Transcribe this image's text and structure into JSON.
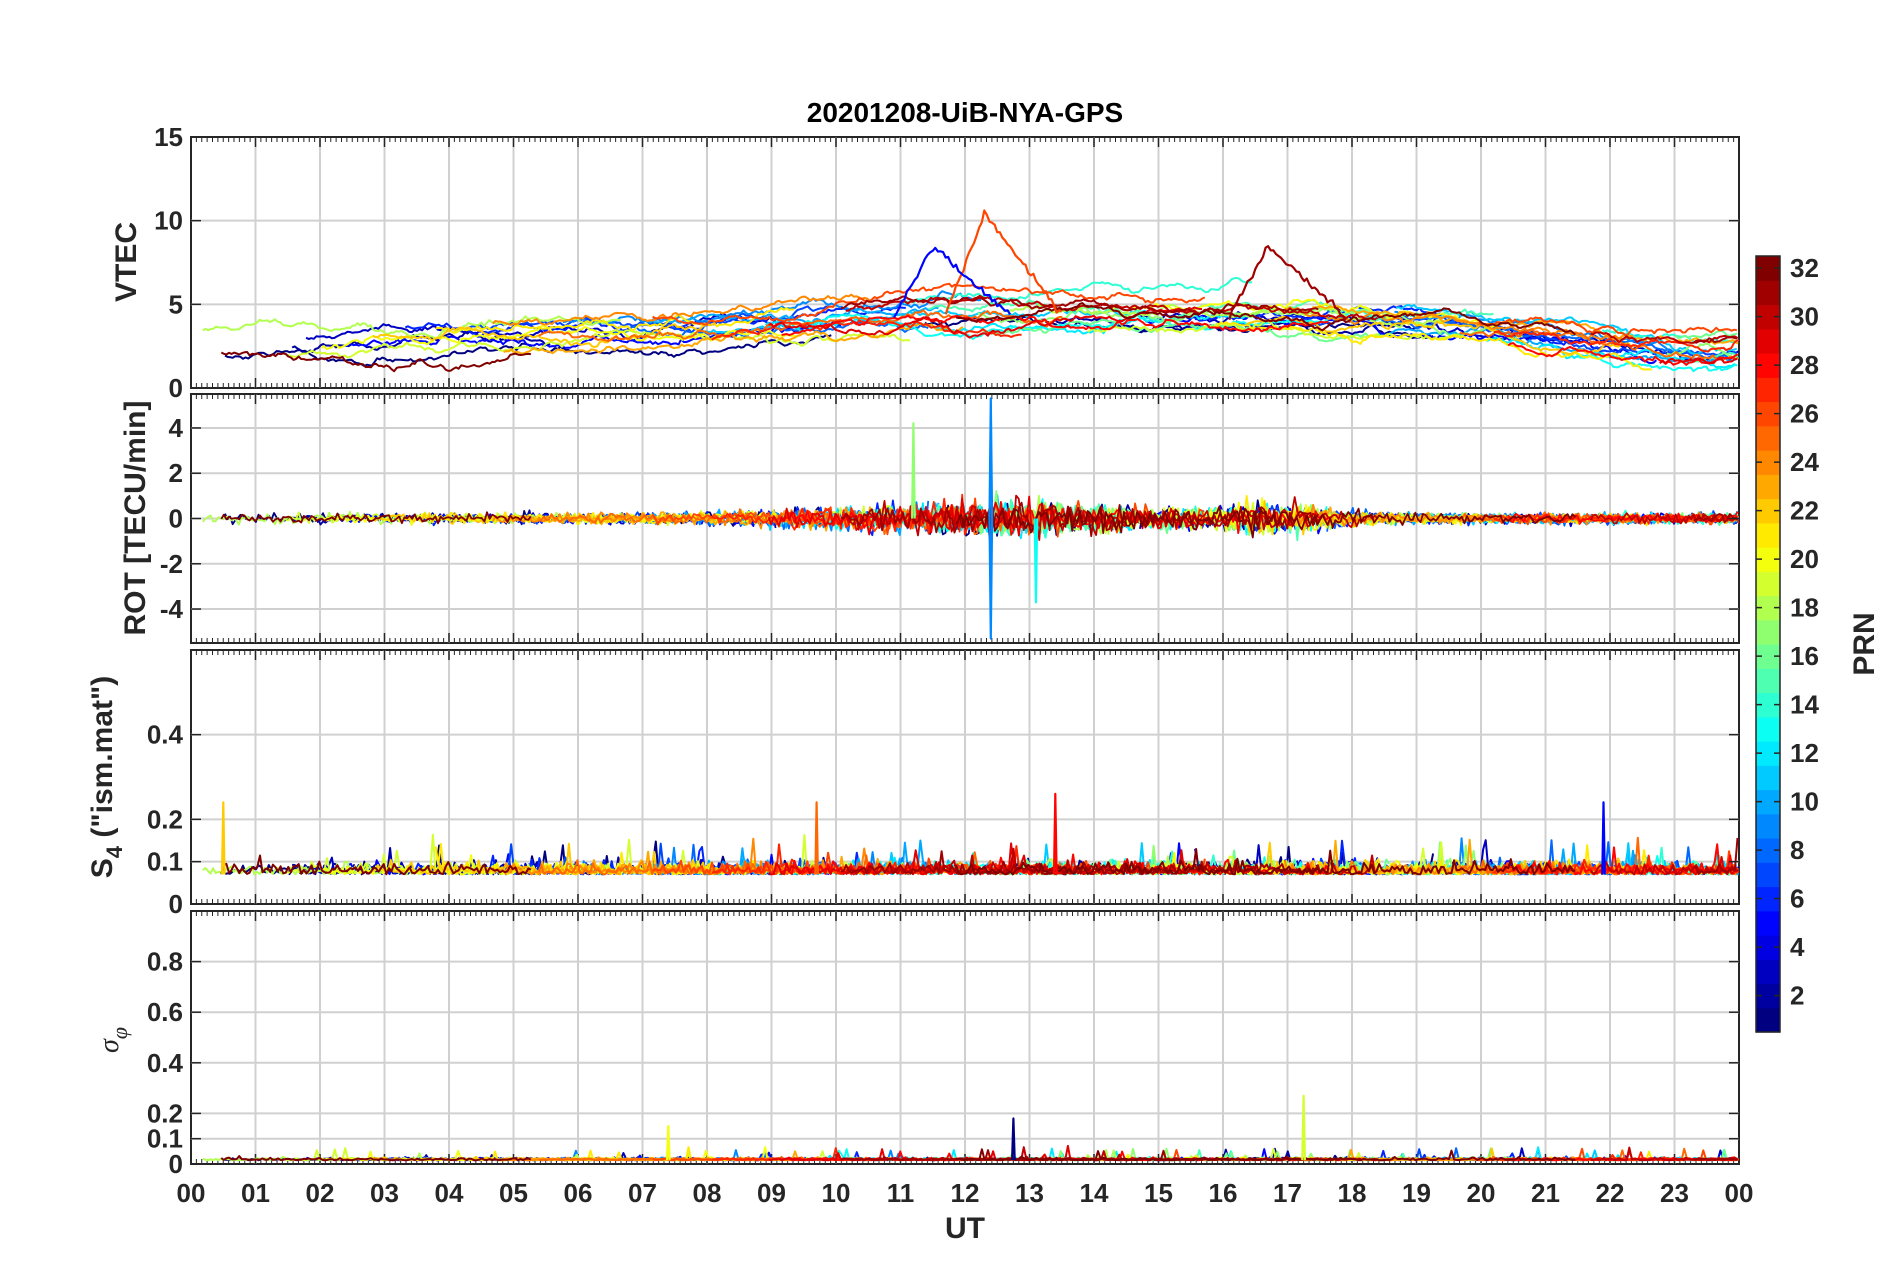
{
  "chart_data": {
    "type": "line",
    "title": "20201208-UiB-NYA-GPS",
    "xlabel": "UT",
    "xlim": [
      0,
      24
    ],
    "x_tick_labels": [
      "00",
      "01",
      "02",
      "03",
      "04",
      "05",
      "06",
      "07",
      "08",
      "09",
      "10",
      "11",
      "12",
      "13",
      "14",
      "15",
      "16",
      "17",
      "18",
      "19",
      "20",
      "21",
      "22",
      "23",
      "00"
    ],
    "grid": true,
    "colorbar": {
      "label": "PRN",
      "range": [
        1,
        32
      ],
      "colormap": "jet",
      "tick_labels": [
        "2",
        "4",
        "6",
        "8",
        "10",
        "12",
        "14",
        "16",
        "18",
        "20",
        "22",
        "24",
        "26",
        "28",
        "30",
        "32"
      ],
      "placement": "right"
    },
    "panels": [
      {
        "id": "vtec",
        "ylabel": "VTEC",
        "ylim": [
          0,
          15
        ],
        "y_tick_labels": [
          "0",
          "5",
          "10",
          "15"
        ],
        "features": [
          {
            "series": "PRN 26",
            "x": 12.3,
            "y": 10.4,
            "note_text": ""
          },
          {
            "series": "PRN 31",
            "x": 16.7,
            "y": 8.5,
            "note_text": ""
          },
          {
            "series": "PRN 5",
            "x": 11.5,
            "y": 8.4,
            "note_text": ""
          }
        ]
      },
      {
        "id": "rot",
        "ylabel": "ROT [TECU/min]",
        "ylim": [
          -5.5,
          5.5
        ],
        "y_tick_labels": [
          "-4",
          "-2",
          "0",
          "2",
          "4"
        ],
        "features": [
          {
            "series": "PRN 9",
            "x": 12.4,
            "y": 5.3
          },
          {
            "series": "PRN 9",
            "x": 12.4,
            "y": -5.3
          },
          {
            "series": "PRN 17",
            "x": 11.2,
            "y": 4.2
          },
          {
            "series": "PRN 13",
            "x": 13.1,
            "y": -3.7
          }
        ]
      },
      {
        "id": "s4",
        "ylabel": "S4 (\"ism.mat\")",
        "ylabel_main": "S",
        "ylabel_sub": "4",
        "ylabel_rest": " (\"ism.mat\")",
        "ylim": [
          0,
          0.6
        ],
        "y_tick_labels": [
          "0",
          "0.1",
          "0.2",
          "0.4"
        ],
        "y_tick_values": [
          0,
          0.1,
          0.2,
          0.4
        ],
        "features": [
          {
            "series": "PRN 25",
            "x": 9.7,
            "y": 0.24
          },
          {
            "series": "PRN 28",
            "x": 13.4,
            "y": 0.26
          },
          {
            "series": "PRN 5",
            "x": 21.9,
            "y": 0.24
          },
          {
            "series": "PRN 22",
            "x": 0.5,
            "y": 0.24
          }
        ]
      },
      {
        "id": "sigphi",
        "ylabel": "σφ",
        "ylabel_main": "σ",
        "ylabel_sub": "φ",
        "ylim": [
          0,
          1
        ],
        "y_tick_labels": [
          "0",
          "0.1",
          "0.2",
          "0.4",
          "0.6",
          "0.8"
        ],
        "y_tick_values": [
          0,
          0.1,
          0.2,
          0.4,
          0.6,
          0.8
        ],
        "features": [
          {
            "series": "PRN 19",
            "x": 17.25,
            "y": 0.27
          },
          {
            "series": "PRN 1",
            "x": 12.75,
            "y": 0.18
          },
          {
            "series": "PRN 20",
            "x": 7.4,
            "y": 0.15
          }
        ]
      }
    ]
  }
}
